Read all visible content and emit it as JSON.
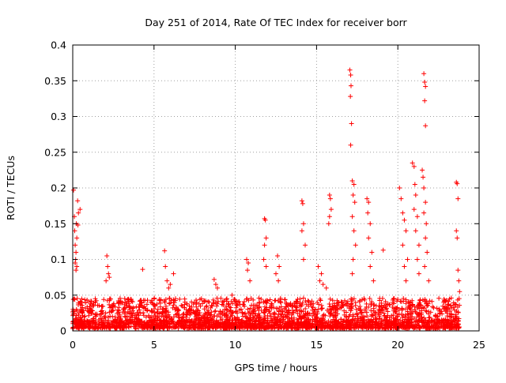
{
  "chart_data": {
    "type": "scatter",
    "title": "Day 251 of 2014, Rate Of TEC Index for receiver borr",
    "xlabel": "GPS time / hours",
    "ylabel": "ROTI / TECUs",
    "xlim": [
      0,
      25
    ],
    "ylim": [
      0,
      0.4
    ],
    "xticks": [
      0,
      5,
      10,
      15,
      20,
      25
    ],
    "yticks": [
      0,
      0.05,
      0.1,
      0.15,
      0.2,
      0.25,
      0.3,
      0.35,
      0.4
    ],
    "xtick_labels": [
      "0",
      "5",
      "10",
      "15",
      "20",
      "25"
    ],
    "ytick_labels": [
      "0",
      "0.05",
      "0.1",
      "0.15",
      "0.2",
      "0.25",
      "0.3",
      "0.35",
      "0.4"
    ],
    "grid": true,
    "marker": "+",
    "color": "#ff0000",
    "background_band": {
      "x": [
        0,
        23.8
      ],
      "y_range": [
        0.0,
        0.03
      ],
      "note": "dense low-level ROTI values across the day"
    },
    "series": [
      {
        "name": "ROTI",
        "points": [
          [
            0.05,
            0.197
          ],
          [
            0.1,
            0.16
          ],
          [
            0.12,
            0.14
          ],
          [
            0.15,
            0.12
          ],
          [
            0.18,
            0.1
          ],
          [
            0.2,
            0.085
          ],
          [
            0.22,
            0.15
          ],
          [
            0.25,
            0.13
          ],
          [
            0.3,
            0.182
          ],
          [
            0.32,
            0.148
          ],
          [
            0.35,
            0.165
          ],
          [
            0.45,
            0.17
          ],
          [
            0.15,
            0.095
          ],
          [
            0.2,
            0.11
          ],
          [
            0.25,
            0.09
          ],
          [
            2.1,
            0.105
          ],
          [
            2.15,
            0.09
          ],
          [
            2.2,
            0.08
          ],
          [
            2.05,
            0.07
          ],
          [
            2.25,
            0.075
          ],
          [
            4.3,
            0.086
          ],
          [
            5.65,
            0.112
          ],
          [
            5.7,
            0.09
          ],
          [
            5.8,
            0.07
          ],
          [
            5.9,
            0.06
          ],
          [
            6.0,
            0.065
          ],
          [
            6.2,
            0.08
          ],
          [
            8.7,
            0.072
          ],
          [
            8.8,
            0.065
          ],
          [
            8.9,
            0.06
          ],
          [
            9.8,
            0.05
          ],
          [
            10.7,
            0.1
          ],
          [
            10.8,
            0.095
          ],
          [
            10.75,
            0.085
          ],
          [
            10.9,
            0.07
          ],
          [
            11.8,
            0.157
          ],
          [
            11.85,
            0.155
          ],
          [
            11.9,
            0.13
          ],
          [
            11.8,
            0.12
          ],
          [
            11.75,
            0.1
          ],
          [
            11.9,
            0.09
          ],
          [
            12.6,
            0.105
          ],
          [
            12.7,
            0.09
          ],
          [
            12.5,
            0.08
          ],
          [
            12.65,
            0.07
          ],
          [
            14.1,
            0.182
          ],
          [
            14.15,
            0.178
          ],
          [
            14.2,
            0.15
          ],
          [
            14.1,
            0.14
          ],
          [
            14.3,
            0.12
          ],
          [
            14.2,
            0.1
          ],
          [
            15.1,
            0.09
          ],
          [
            15.3,
            0.08
          ],
          [
            15.2,
            0.07
          ],
          [
            15.4,
            0.065
          ],
          [
            15.6,
            0.06
          ],
          [
            15.8,
            0.19
          ],
          [
            15.85,
            0.185
          ],
          [
            15.9,
            0.17
          ],
          [
            15.8,
            0.16
          ],
          [
            15.75,
            0.15
          ],
          [
            17.05,
            0.365
          ],
          [
            17.1,
            0.358
          ],
          [
            17.12,
            0.343
          ],
          [
            17.08,
            0.328
          ],
          [
            17.15,
            0.29
          ],
          [
            17.1,
            0.26
          ],
          [
            17.2,
            0.21
          ],
          [
            17.3,
            0.205
          ],
          [
            17.25,
            0.19
          ],
          [
            17.35,
            0.18
          ],
          [
            17.2,
            0.16
          ],
          [
            17.3,
            0.14
          ],
          [
            17.4,
            0.12
          ],
          [
            17.25,
            0.1
          ],
          [
            17.2,
            0.08
          ],
          [
            18.1,
            0.185
          ],
          [
            18.2,
            0.18
          ],
          [
            18.15,
            0.165
          ],
          [
            18.3,
            0.15
          ],
          [
            18.2,
            0.13
          ],
          [
            18.4,
            0.11
          ],
          [
            18.3,
            0.09
          ],
          [
            18.5,
            0.07
          ],
          [
            19.1,
            0.113
          ],
          [
            20.1,
            0.2
          ],
          [
            20.2,
            0.185
          ],
          [
            20.3,
            0.165
          ],
          [
            20.4,
            0.155
          ],
          [
            20.5,
            0.14
          ],
          [
            20.3,
            0.12
          ],
          [
            20.6,
            0.1
          ],
          [
            20.4,
            0.09
          ],
          [
            20.5,
            0.07
          ],
          [
            20.9,
            0.235
          ],
          [
            21.0,
            0.23
          ],
          [
            21.05,
            0.205
          ],
          [
            21.1,
            0.19
          ],
          [
            21.0,
            0.17
          ],
          [
            21.2,
            0.16
          ],
          [
            21.1,
            0.14
          ],
          [
            21.3,
            0.12
          ],
          [
            21.2,
            0.1
          ],
          [
            21.3,
            0.08
          ],
          [
            21.6,
            0.36
          ],
          [
            21.65,
            0.348
          ],
          [
            21.7,
            0.342
          ],
          [
            21.65,
            0.322
          ],
          [
            21.7,
            0.287
          ],
          [
            21.5,
            0.225
          ],
          [
            21.55,
            0.215
          ],
          [
            21.6,
            0.2
          ],
          [
            21.7,
            0.18
          ],
          [
            21.6,
            0.165
          ],
          [
            21.75,
            0.15
          ],
          [
            21.7,
            0.13
          ],
          [
            21.8,
            0.11
          ],
          [
            21.65,
            0.09
          ],
          [
            21.9,
            0.07
          ],
          [
            23.6,
            0.208
          ],
          [
            23.65,
            0.206
          ],
          [
            23.7,
            0.185
          ],
          [
            23.6,
            0.14
          ],
          [
            23.65,
            0.13
          ],
          [
            23.7,
            0.085
          ],
          [
            23.75,
            0.07
          ],
          [
            23.8,
            0.055
          ]
        ]
      }
    ]
  }
}
